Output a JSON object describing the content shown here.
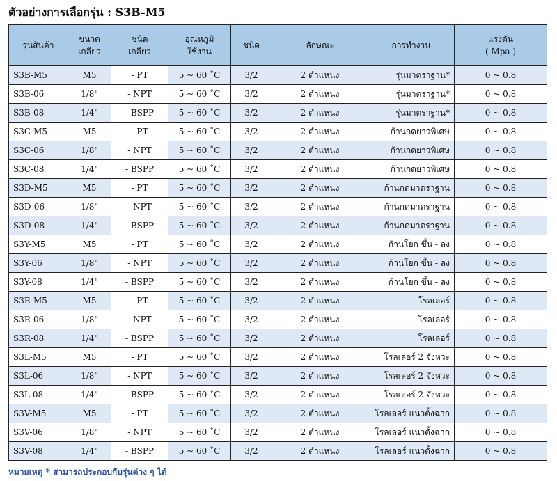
{
  "title": "ตัวอย่างการเลือกรุ่น : S3B-M5",
  "table": {
    "headers": {
      "model": "รุ่นสินค้า",
      "size": [
        "ขนาด",
        "เกลียว"
      ],
      "thread_type": [
        "ชนิด",
        "เกลียว"
      ],
      "temperature": [
        "อุณหภูมิ",
        "ใช้งาน"
      ],
      "type": "ชนิด",
      "feature": "ลักษณะ",
      "operation": "การทำงาน",
      "pressure": [
        "แรงดัน",
        "( Mpa )"
      ]
    },
    "rows": [
      {
        "model": "S3B-M5",
        "size": "M5",
        "thread": "- PT",
        "temp": "5 ~ 60 ˚C",
        "type": "3/2",
        "feature": "2 ตำแหน่ง",
        "operation": "รุ่นมาตราฐาน*",
        "pressure": "0 ~ 0.8"
      },
      {
        "model": "S3B-06",
        "size": "1/8\"",
        "thread": "- NPT",
        "temp": "5 ~ 60 ˚C",
        "type": "3/2",
        "feature": "2 ตำแหน่ง",
        "operation": "รุ่นมาตราฐาน*",
        "pressure": "0 ~ 0.8"
      },
      {
        "model": "S3B-08",
        "size": "1/4\"",
        "thread": "- BSPP",
        "temp": "5 ~ 60 ˚C",
        "type": "3/2",
        "feature": "2 ตำแหน่ง",
        "operation": "รุ่นมาตราฐาน*",
        "pressure": "0 ~ 0.8"
      },
      {
        "model": "S3C-M5",
        "size": "M5",
        "thread": "- PT",
        "temp": "5 ~ 60 ˚C",
        "type": "3/2",
        "feature": "2 ตำแหน่ง",
        "operation": "ก้านกดยาวพิเศษ",
        "pressure": "0 ~ 0.8"
      },
      {
        "model": "S3C-06",
        "size": "1/8\"",
        "thread": "- NPT",
        "temp": "5 ~ 60 ˚C",
        "type": "3/2",
        "feature": "2 ตำแหน่ง",
        "operation": "ก้านกดยาวพิเศษ",
        "pressure": "0 ~ 0.8"
      },
      {
        "model": "S3C-08",
        "size": "1/4\"",
        "thread": "- BSPP",
        "temp": "5 ~ 60 ˚C",
        "type": "3/2",
        "feature": "2 ตำแหน่ง",
        "operation": "ก้านกดยาวพิเศษ",
        "pressure": "0 ~ 0.8"
      },
      {
        "model": "S3D-M5",
        "size": "M5",
        "thread": "- PT",
        "temp": "5 ~ 60 ˚C",
        "type": "3/2",
        "feature": "2 ตำแหน่ง",
        "operation": "ก้านกดมาตราฐาน",
        "pressure": "0 ~ 0.8"
      },
      {
        "model": "S3D-06",
        "size": "1/8\"",
        "thread": "- NPT",
        "temp": "5 ~ 60 ˚C",
        "type": "3/2",
        "feature": "2 ตำแหน่ง",
        "operation": "ก้านกดมาตราฐาน",
        "pressure": "0 ~ 0.8"
      },
      {
        "model": "S3D-08",
        "size": "1/4\"",
        "thread": "- BSPP",
        "temp": "5 ~ 60 ˚C",
        "type": "3/2",
        "feature": "2 ตำแหน่ง",
        "operation": "ก้านกดมาตราฐาน",
        "pressure": "0 ~ 0.8"
      },
      {
        "model": "S3Y-M5",
        "size": "M5",
        "thread": "- PT",
        "temp": "5 ~ 60 ˚C",
        "type": "3/2",
        "feature": "2 ตำแหน่ง",
        "operation": "ก้านโยก ขึ้น - ลง",
        "pressure": "0 ~ 0.8"
      },
      {
        "model": "S3Y-06",
        "size": "1/8\"",
        "thread": "- NPT",
        "temp": "5 ~ 60 ˚C",
        "type": "3/2",
        "feature": "2 ตำแหน่ง",
        "operation": "ก้านโยก ขึ้น - ลง",
        "pressure": "0 ~ 0.8"
      },
      {
        "model": "S3Y-08",
        "size": "1/4\"",
        "thread": "- BSPP",
        "temp": "5 ~ 60 ˚C",
        "type": "3/2",
        "feature": "2 ตำแหน่ง",
        "operation": "ก้านโยก ขึ้น - ลง",
        "pressure": "0 ~ 0.8"
      },
      {
        "model": "S3R-M5",
        "size": "M5",
        "thread": "- PT",
        "temp": "5 ~ 60 ˚C",
        "type": "3/2",
        "feature": "2 ตำแหน่ง",
        "operation": "โรลเลอร์",
        "pressure": "0 ~ 0.8"
      },
      {
        "model": "S3R-06",
        "size": "1/8\"",
        "thread": "- NPT",
        "temp": "5 ~ 60 ˚C",
        "type": "3/2",
        "feature": "2 ตำแหน่ง",
        "operation": "โรลเลอร์",
        "pressure": "0 ~ 0.8"
      },
      {
        "model": "S3R-08",
        "size": "1/4\"",
        "thread": "- BSPP",
        "temp": "5 ~ 60 ˚C",
        "type": "3/2",
        "feature": "2 ตำแหน่ง",
        "operation": "โรลเลอร์",
        "pressure": "0 ~ 0.8"
      },
      {
        "model": "S3L-M5",
        "size": "M5",
        "thread": "- PT",
        "temp": "5 ~ 60 ˚C",
        "type": "3/2",
        "feature": "2 ตำแหน่ง",
        "operation": "โรลเลอร์ 2 จังหวะ",
        "pressure": "0 ~ 0.8"
      },
      {
        "model": "S3L-06",
        "size": "1/8\"",
        "thread": "- NPT",
        "temp": "5 ~ 60 ˚C",
        "type": "3/2",
        "feature": "2 ตำแหน่ง",
        "operation": "โรลเลอร์ 2 จังหวะ",
        "pressure": "0 ~ 0.8"
      },
      {
        "model": "S3L-08",
        "size": "1/4\"",
        "thread": "- BSPP",
        "temp": "5 ~ 60 ˚C",
        "type": "3/2",
        "feature": "2 ตำแหน่ง",
        "operation": "โรลเลอร์ 2 จังหวะ",
        "pressure": "0 ~ 0.8"
      },
      {
        "model": "S3V-M5",
        "size": "M5",
        "thread": "- PT",
        "temp": "5 ~ 60 ˚C",
        "type": "3/2",
        "feature": "2 ตำแหน่ง",
        "operation": "โรลเลอร์ แนวตั้งฉาก",
        "pressure": "0 ~ 0.8"
      },
      {
        "model": "S3V-06",
        "size": "1/8\"",
        "thread": "- NPT",
        "temp": "5 ~ 60 ˚C",
        "type": "3/2",
        "feature": "2 ตำแหน่ง",
        "operation": "โรลเลอร์ แนวตั้งฉาก",
        "pressure": "0 ~ 0.8"
      },
      {
        "model": "S3V-08",
        "size": "1/4\"",
        "thread": "- BSPP",
        "temp": "5 ~ 60 ˚C",
        "type": "3/2",
        "feature": "2 ตำแหน่ง",
        "operation": "โรลเลอร์ แนวตั้งฉาก",
        "pressure": "0 ~ 0.8"
      }
    ]
  },
  "note": "หมายเหตุ * สามารถประกอบกับรุ่นต่าง ๆ ได้",
  "colors": {
    "header_bg": "#a9cbe8",
    "row_shade": "#dfe8f5",
    "note_text": "#2b4fa8"
  }
}
